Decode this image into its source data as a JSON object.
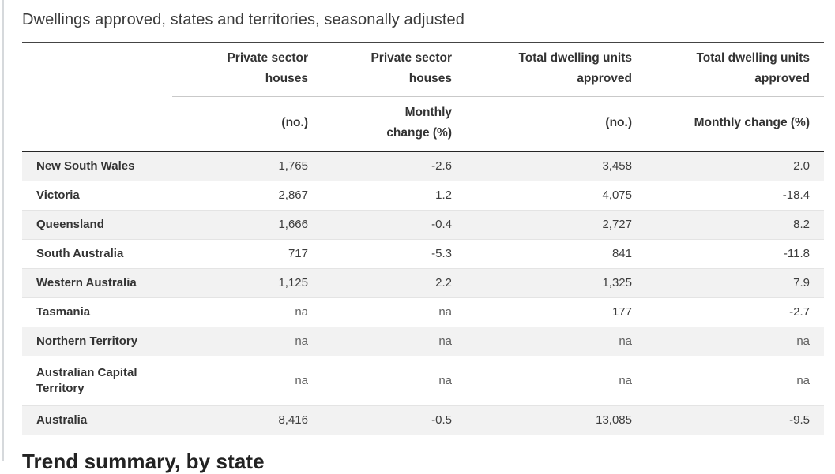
{
  "page": {
    "title": "Dwellings approved, states and territories, seasonally adjusted",
    "next_section_heading": "Trend summary, by state"
  },
  "table": {
    "col_groups": {
      "private_houses": "Private sector houses",
      "total_units": "Total dwelling units approved"
    },
    "col_units": {
      "no_1": "(no.)",
      "pct_1": "Monthly change (%)",
      "no_2": "(no.)",
      "pct_2": "Monthly change (%)"
    },
    "rows": [
      {
        "label": "New South Wales",
        "values": [
          "1,765",
          "-2.6",
          "3,458",
          "2.0"
        ]
      },
      {
        "label": "Victoria",
        "values": [
          "2,867",
          "1.2",
          "4,075",
          "-18.4"
        ]
      },
      {
        "label": "Queensland",
        "values": [
          "1,666",
          "-0.4",
          "2,727",
          "8.2"
        ]
      },
      {
        "label": "South Australia",
        "values": [
          "717",
          "-5.3",
          "841",
          "-11.8"
        ]
      },
      {
        "label": "Western Australia",
        "values": [
          "1,125",
          "2.2",
          "1,325",
          "7.9"
        ]
      },
      {
        "label": "Tasmania",
        "values": [
          "na",
          "na",
          "177",
          "-2.7"
        ]
      },
      {
        "label": "Northern Territory",
        "values": [
          "na",
          "na",
          "na",
          "na"
        ]
      },
      {
        "label": "Australian Capital Territory",
        "values": [
          "na",
          "na",
          "na",
          "na"
        ]
      },
      {
        "label": "Australia",
        "values": [
          "8,416",
          "-0.5",
          "13,085",
          "-9.5"
        ]
      }
    ]
  }
}
